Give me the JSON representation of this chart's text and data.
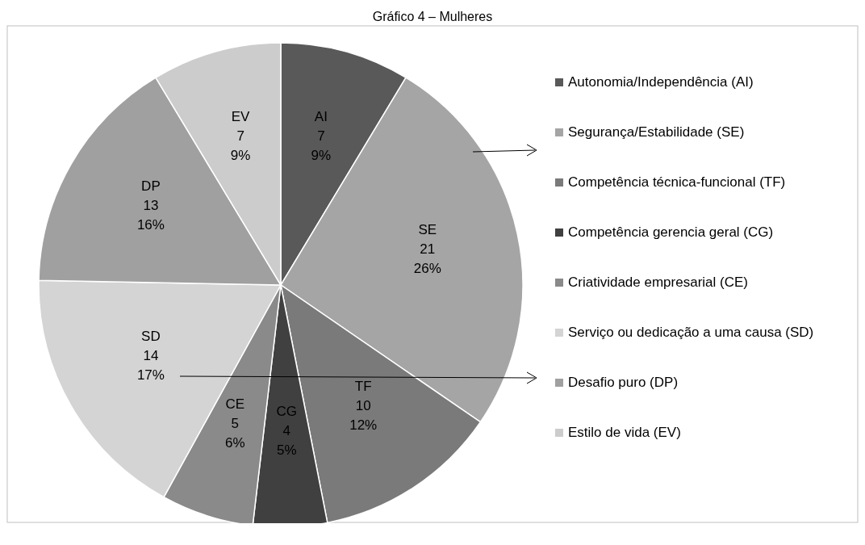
{
  "chart_data": {
    "type": "pie",
    "title": "Gráfico 4 – Mulheres",
    "categories": [
      "Autonomia/Independência (AI)",
      "Segurança/Estabilidade (SE)",
      "Competência técnica-funcional (TF)",
      "Competência gerencia geral (CG)",
      "Criatividade empresarial (CE)",
      "Serviço ou dedicação a uma causa (SD)",
      "Desafio puro (DP)",
      "Estilo de vida (EV)"
    ],
    "values": [
      7,
      21,
      10,
      4,
      5,
      14,
      13,
      7
    ],
    "value_labels": [
      "AI\n7\n9%",
      "SE\n21\n26%",
      "TF\n10\n12%",
      "CG\n4\n5%",
      "CE\n5\n6%",
      "SD\n14\n17%",
      "DP\n13\n16%",
      "EV\n7\n9%"
    ],
    "colors": [
      "#595959",
      "#a5a5a5",
      "#7a7a7a",
      "#404040",
      "#8a8a8a",
      "#d4d4d4",
      "#a0a0a0",
      "#cccccc"
    ],
    "legend": "right"
  }
}
